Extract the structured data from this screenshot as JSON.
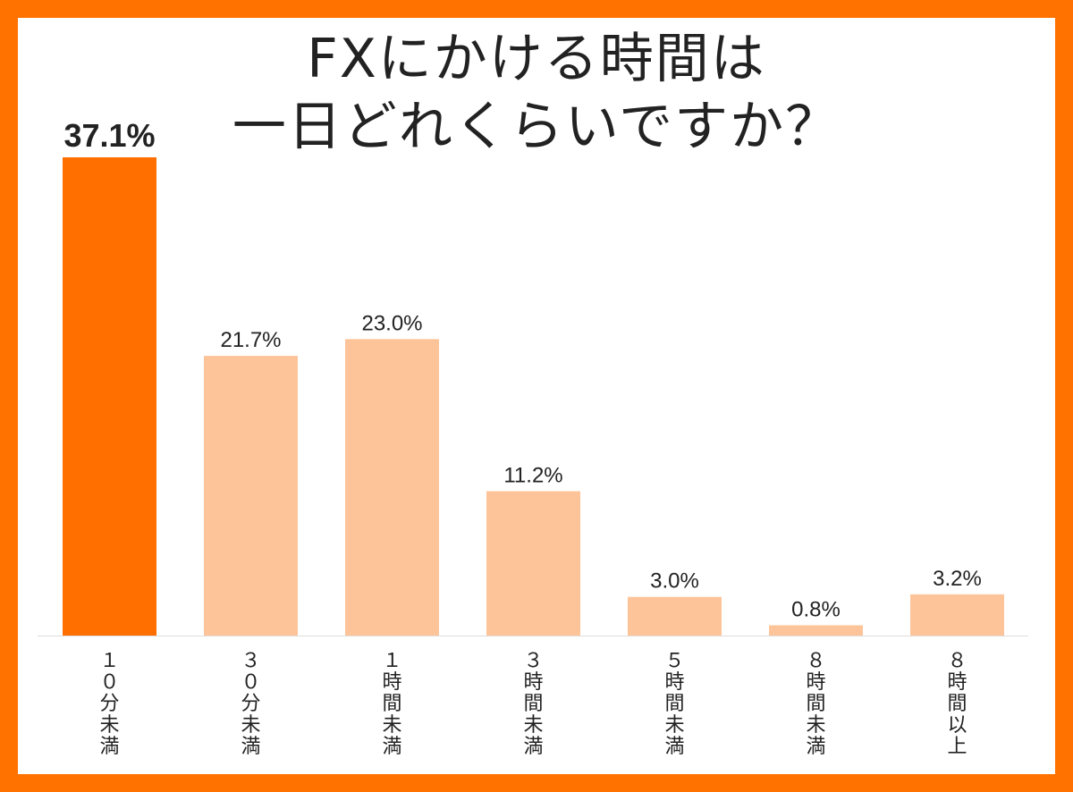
{
  "colors": {
    "frame": "#ff7200",
    "highlight_bar": "#ff6f00",
    "bar": "#fdc49a",
    "text": "#222222",
    "axis": "#dddddd"
  },
  "chart_data": {
    "type": "bar",
    "title": [
      "FXにかける時間は",
      "一日どれくらいですか？"
    ],
    "categories": [
      "１０分未満",
      "３０分未満",
      "１時間未満",
      "３時間未満",
      "５時間未満",
      "８時間未満",
      "８時間以上"
    ],
    "values": [
      37.1,
      21.7,
      23.0,
      11.2,
      3.0,
      0.8,
      3.2
    ],
    "value_labels": [
      "37.1%",
      "21.7%",
      "23.0%",
      "11.2%",
      "3.0%",
      "0.8%",
      "3.2%"
    ],
    "highlight_index": 0,
    "unit": "%",
    "ylim": [
      0,
      37.1
    ],
    "grid": false,
    "legend": "none"
  }
}
